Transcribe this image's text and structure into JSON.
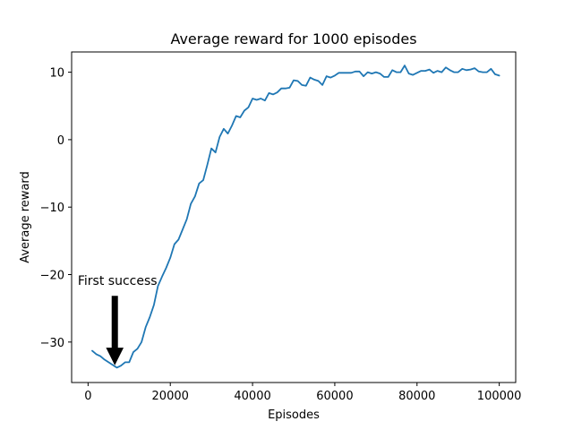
{
  "chart_data": {
    "type": "line",
    "title": "Average reward for 1000 episodes",
    "xlabel": "Episodes",
    "ylabel": "Average reward",
    "xlim": [
      -4000,
      104000
    ],
    "ylim": [
      -36,
      13
    ],
    "xticks": [
      0,
      20000,
      40000,
      60000,
      80000,
      100000
    ],
    "xtick_labels": [
      "0",
      "20000",
      "40000",
      "60000",
      "80000",
      "100000"
    ],
    "yticks": [
      -30,
      -20,
      -10,
      0,
      10
    ],
    "ytick_labels": [
      "−30",
      "−20",
      "−10",
      "0",
      "10"
    ],
    "grid": false,
    "line_color": "#1f77b4",
    "series": [
      {
        "x": [
          1000,
          2000,
          3000,
          4000,
          5000,
          6000,
          7000,
          8000,
          9000,
          10000,
          11000,
          12000,
          13000,
          14000,
          15000,
          16000,
          17000,
          18000,
          19000,
          20000,
          21000,
          22000,
          23000,
          24000,
          25000,
          26000,
          27000,
          28000,
          29000,
          30000,
          31000,
          32000,
          33000,
          34000,
          35000,
          36000,
          37000,
          38000,
          39000,
          40000,
          41000,
          42000,
          43000,
          44000,
          45000,
          46000,
          47000,
          48000,
          49000,
          50000,
          51000,
          52000,
          53000,
          54000,
          55000,
          56000,
          57000,
          58000,
          59000,
          60000,
          61000,
          62000,
          63000,
          64000,
          65000,
          66000,
          67000,
          68000,
          69000,
          70000,
          71000,
          72000,
          73000,
          74000,
          75000,
          76000,
          77000,
          78000,
          79000,
          80000,
          81000,
          82000,
          83000,
          84000,
          85000,
          86000,
          87000,
          88000,
          89000,
          90000,
          91000,
          92000,
          93000,
          94000,
          95000,
          96000,
          97000,
          98000,
          99000,
          100000
        ],
        "values": [
          -31.3,
          -31.8,
          -32.1,
          -32.6,
          -33.0,
          -33.4,
          -33.8,
          -33.5,
          -33.0,
          -33.0,
          -31.5,
          -31.0,
          -30.0,
          -27.8,
          -26.3,
          -24.5,
          -21.7,
          -20.3,
          -19.0,
          -17.5,
          -15.5,
          -14.8,
          -13.3,
          -11.8,
          -9.5,
          -8.4,
          -6.5,
          -6.0,
          -3.7,
          -1.3,
          -1.9,
          0.4,
          1.6,
          0.9,
          2.1,
          3.5,
          3.3,
          4.3,
          4.8,
          6.1,
          5.9,
          6.1,
          5.8,
          6.9,
          6.7,
          7.0,
          7.6,
          7.6,
          7.7,
          8.8,
          8.7,
          8.1,
          8.0,
          9.2,
          8.9,
          8.7,
          8.1,
          9.4,
          9.2,
          9.5,
          9.9,
          9.9,
          9.9,
          9.9,
          10.1,
          10.1,
          9.4,
          10.0,
          9.8,
          10.0,
          9.8,
          9.3,
          9.3,
          10.3,
          10.0,
          10.0,
          11.0,
          9.8,
          9.6,
          9.9,
          10.2,
          10.2,
          10.4,
          9.9,
          10.2,
          10.0,
          10.7,
          10.3,
          10.0,
          10.0,
          10.5,
          10.3,
          10.4,
          10.6,
          10.1,
          10.0,
          10.0,
          10.5,
          9.7,
          9.5
        ]
      }
    ],
    "annotation": {
      "text": "First success",
      "x": 6500,
      "y": -33.3,
      "text_x": -2500,
      "text_y": -21.5
    }
  }
}
